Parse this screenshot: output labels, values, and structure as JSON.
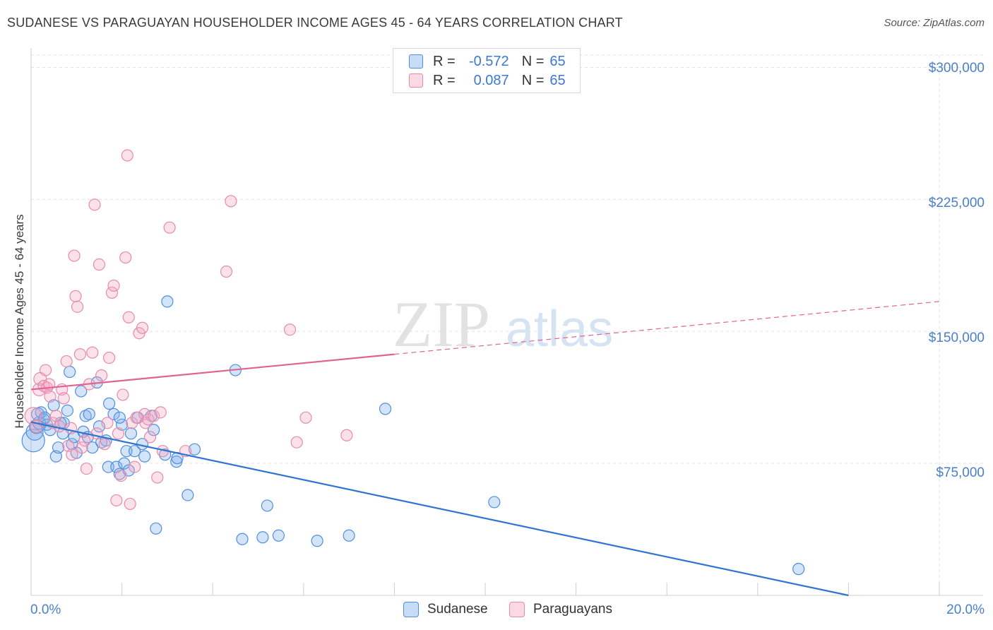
{
  "title": "SUDANESE VS PARAGUAYAN HOUSEHOLDER INCOME AGES 45 - 64 YEARS CORRELATION CHART",
  "source": "Source: ZipAtlas.com",
  "watermark": {
    "zip": "ZIP",
    "atlas": "atlas"
  },
  "colors": {
    "sudanese_fill": "rgba(128,176,234,0.35)",
    "sudanese_stroke": "#4f8fdc",
    "sudanese_line": "#2f74d0",
    "paraguayan_fill": "rgba(244,170,196,0.35)",
    "paraguayan_stroke": "#e88aab",
    "paraguayan_line": "#e0648f",
    "grid": "#e3e3e3",
    "tick_label": "#4a7fc9"
  },
  "legend_top": {
    "rows": [
      {
        "r_label": "R =",
        "r_value": "-0.572",
        "n_label": "N =",
        "n_value": "65"
      },
      {
        "r_label": "R =",
        "r_value": "0.087",
        "n_label": "N =",
        "n_value": "65"
      }
    ]
  },
  "legend_bottom": [
    "Sudanese",
    "Paraguayans"
  ],
  "chart_data": {
    "type": "scatter",
    "title": "SUDANESE VS PARAGUAYAN HOUSEHOLDER INCOME AGES 45 - 64 YEARS CORRELATION CHART",
    "xlabel": "",
    "ylabel": "Householder Income Ages 45 - 64 years",
    "xlim": [
      0,
      20
    ],
    "ylim": [
      0,
      307000
    ],
    "x_tick_labels": [
      "0.0%",
      "20.0%"
    ],
    "y_ticks": [
      75000,
      150000,
      225000,
      300000
    ],
    "y_tick_labels": [
      "$75,000",
      "$150,000",
      "$225,000",
      "$300,000"
    ],
    "grid": true,
    "legend_position": "top-center",
    "series": [
      {
        "name": "Sudanese",
        "r": -0.572,
        "n": 65,
        "trend": {
          "x": [
            0,
            18.0
          ],
          "y": [
            98500,
            0
          ],
          "dashed_extension": false
        },
        "points": [
          [
            0.05,
            88000,
            16
          ],
          [
            0.08,
            93000,
            12
          ],
          [
            0.12,
            96000,
            10
          ],
          [
            0.15,
            103000,
            9
          ],
          [
            0.18,
            98000,
            9
          ],
          [
            0.22,
            104000,
            8
          ],
          [
            0.28,
            100000,
            8
          ],
          [
            0.35,
            97000,
            8
          ],
          [
            0.42,
            94000,
            8
          ],
          [
            0.5,
            108000,
            8
          ],
          [
            0.55,
            79000,
            8
          ],
          [
            0.6,
            84000,
            8
          ],
          [
            0.7,
            92000,
            8
          ],
          [
            0.72,
            98000,
            8
          ],
          [
            0.8,
            105000,
            8
          ],
          [
            0.85,
            127000,
            8
          ],
          [
            0.9,
            86000,
            8
          ],
          [
            0.95,
            90000,
            8
          ],
          [
            1.0,
            81000,
            8
          ],
          [
            1.1,
            116000,
            8
          ],
          [
            1.15,
            93000,
            8
          ],
          [
            1.2,
            102000,
            8
          ],
          [
            1.28,
            103000,
            8
          ],
          [
            1.35,
            84000,
            8
          ],
          [
            1.45,
            121000,
            8
          ],
          [
            1.5,
            96000,
            8
          ],
          [
            1.55,
            87000,
            8
          ],
          [
            1.65,
            88000,
            8
          ],
          [
            1.7,
            73000,
            8
          ],
          [
            1.72,
            109000,
            8
          ],
          [
            1.82,
            103000,
            8
          ],
          [
            1.88,
            73000,
            8
          ],
          [
            1.95,
            69000,
            8
          ],
          [
            2.0,
            97000,
            8
          ],
          [
            2.05,
            75000,
            8
          ],
          [
            2.1,
            82000,
            8
          ],
          [
            2.15,
            71000,
            8
          ],
          [
            2.2,
            92000,
            8
          ],
          [
            2.28,
            82000,
            8
          ],
          [
            2.35,
            101000,
            8
          ],
          [
            2.45,
            86000,
            8
          ],
          [
            2.5,
            79000,
            8
          ],
          [
            2.65,
            102000,
            8
          ],
          [
            2.7,
            94000,
            8
          ],
          [
            2.75,
            38000,
            8
          ],
          [
            2.95,
            80000,
            8
          ],
          [
            3.0,
            167000,
            8
          ],
          [
            3.2,
            76000,
            8
          ],
          [
            3.22,
            78000,
            8
          ],
          [
            3.45,
            57000,
            8
          ],
          [
            3.6,
            83000,
            8
          ],
          [
            4.5,
            128000,
            8
          ],
          [
            4.65,
            32000,
            8
          ],
          [
            5.1,
            33000,
            8
          ],
          [
            5.2,
            51000,
            8
          ],
          [
            5.45,
            34000,
            8
          ],
          [
            6.3,
            31000,
            8
          ],
          [
            7.0,
            34000,
            8
          ],
          [
            7.8,
            106000,
            8
          ],
          [
            10.2,
            53000,
            8
          ],
          [
            16.9,
            15000,
            8
          ],
          [
            0.3,
            101000,
            8
          ],
          [
            0.65,
            98000,
            8
          ],
          [
            1.25,
            90000,
            8
          ],
          [
            1.95,
            101000,
            8
          ]
        ]
      },
      {
        "name": "Paraguayans",
        "r": 0.087,
        "n": 65,
        "trend": {
          "x": [
            0,
            8.0
          ],
          "y": [
            117000,
            137000
          ],
          "dashed_to": [
            20.0,
            167000
          ]
        },
        "points": [
          [
            0.05,
            102000,
            12
          ],
          [
            0.12,
            96000,
            9
          ],
          [
            0.18,
            117000,
            9
          ],
          [
            0.2,
            123000,
            9
          ],
          [
            0.28,
            119000,
            8
          ],
          [
            0.32,
            128000,
            8
          ],
          [
            0.35,
            118000,
            8
          ],
          [
            0.42,
            113000,
            8
          ],
          [
            0.48,
            98000,
            8
          ],
          [
            0.55,
            102000,
            8
          ],
          [
            0.62,
            96000,
            8
          ],
          [
            0.68,
            117000,
            8
          ],
          [
            0.72,
            112000,
            8
          ],
          [
            0.78,
            133000,
            8
          ],
          [
            0.82,
            85000,
            8
          ],
          [
            0.88,
            95000,
            8
          ],
          [
            0.9,
            80000,
            8
          ],
          [
            0.95,
            193000,
            8
          ],
          [
            0.98,
            170000,
            8
          ],
          [
            1.02,
            164000,
            8
          ],
          [
            1.08,
            137000,
            8
          ],
          [
            1.12,
            84000,
            8
          ],
          [
            1.18,
            88000,
            8
          ],
          [
            1.22,
            72000,
            8
          ],
          [
            1.28,
            120000,
            8
          ],
          [
            1.35,
            138000,
            8
          ],
          [
            1.4,
            222000,
            8
          ],
          [
            1.45,
            92000,
            8
          ],
          [
            1.5,
            188000,
            8
          ],
          [
            1.55,
            125000,
            8
          ],
          [
            1.62,
            86000,
            8
          ],
          [
            1.68,
            98000,
            8
          ],
          [
            1.72,
            135000,
            8
          ],
          [
            1.78,
            172000,
            8
          ],
          [
            1.82,
            176000,
            8
          ],
          [
            1.88,
            54000,
            8
          ],
          [
            1.92,
            92000,
            8
          ],
          [
            1.98,
            68000,
            8
          ],
          [
            2.02,
            114000,
            8
          ],
          [
            2.08,
            192000,
            8
          ],
          [
            2.12,
            250000,
            8
          ],
          [
            2.15,
            158000,
            8
          ],
          [
            2.18,
            52000,
            8
          ],
          [
            2.22,
            98000,
            8
          ],
          [
            2.28,
            73000,
            8
          ],
          [
            2.32,
            101000,
            8
          ],
          [
            2.38,
            149000,
            8
          ],
          [
            2.45,
            152000,
            8
          ],
          [
            2.5,
            103000,
            8
          ],
          [
            2.52,
            98000,
            8
          ],
          [
            2.58,
            100000,
            8
          ],
          [
            2.62,
            90000,
            8
          ],
          [
            2.7,
            102000,
            8
          ],
          [
            2.78,
            67000,
            8
          ],
          [
            2.85,
            104000,
            8
          ],
          [
            2.9,
            82000,
            8
          ],
          [
            3.05,
            209000,
            8
          ],
          [
            3.4,
            82000,
            8
          ],
          [
            4.3,
            184000,
            8
          ],
          [
            4.4,
            224000,
            8
          ],
          [
            5.7,
            151000,
            8
          ],
          [
            5.85,
            87000,
            8
          ],
          [
            6.05,
            101000,
            8
          ],
          [
            6.95,
            91000,
            8
          ],
          [
            0.4,
            120000,
            8
          ]
        ]
      }
    ]
  }
}
